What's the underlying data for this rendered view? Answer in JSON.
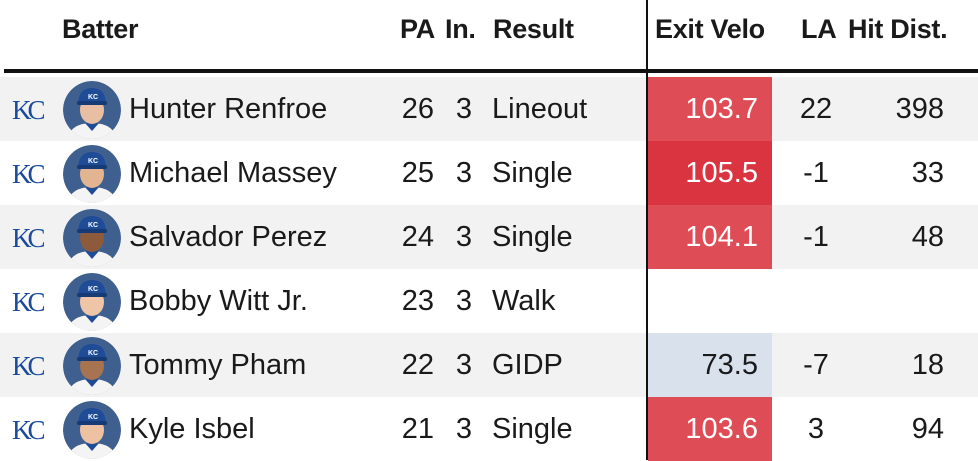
{
  "header": {
    "batter": "Batter",
    "pa": "PA",
    "inning": "In.",
    "result": "Result",
    "exit_velo": "Exit Velo",
    "la": "LA",
    "hit_dist": "Hit Dist."
  },
  "team_logo": {
    "text": "KC",
    "color": "#1a4a9c"
  },
  "colors": {
    "hard_hit": "#de4d55",
    "hard_hit_strong": "#d9343f",
    "soft_hit": "#d9e1ed",
    "row_alt": "#f2f2f2",
    "cap_blue": "#1f4c97"
  },
  "rows": [
    {
      "name": "Hunter Renfroe",
      "pa": "26",
      "inning": "3",
      "result": "Lineout",
      "exit_velo": "103.7",
      "la": "22",
      "dist": "398",
      "ev_class": "hard_hit",
      "skin": "#e8bfa2"
    },
    {
      "name": "Michael Massey",
      "pa": "25",
      "inning": "3",
      "result": "Single",
      "exit_velo": "105.5",
      "la": "-1",
      "dist": "33",
      "ev_class": "hard_hit_strong",
      "skin": "#e3b491"
    },
    {
      "name": "Salvador Perez",
      "pa": "24",
      "inning": "3",
      "result": "Single",
      "exit_velo": "104.1",
      "la": "-1",
      "dist": "48",
      "ev_class": "hard_hit",
      "skin": "#8d5a3c"
    },
    {
      "name": "Bobby Witt Jr.",
      "pa": "23",
      "inning": "3",
      "result": "Walk",
      "exit_velo": "",
      "la": "",
      "dist": "",
      "ev_class": "none",
      "skin": "#efc5a8"
    },
    {
      "name": "Tommy Pham",
      "pa": "22",
      "inning": "3",
      "result": "GIDP",
      "exit_velo": "73.5",
      "la": "-7",
      "dist": "18",
      "ev_class": "soft_hit",
      "skin": "#a77350"
    },
    {
      "name": "Kyle Isbel",
      "pa": "21",
      "inning": "3",
      "result": "Single",
      "exit_velo": "103.6",
      "la": "3",
      "dist": "94",
      "ev_class": "hard_hit",
      "skin": "#edc2a3"
    }
  ]
}
